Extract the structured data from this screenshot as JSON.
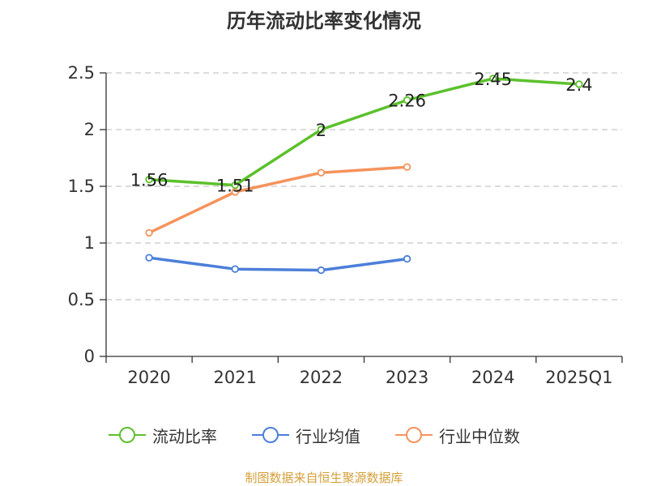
{
  "chart_data": {
    "type": "line",
    "title": "历年流动比率变化情况",
    "categories": [
      "2020",
      "2021",
      "2022",
      "2023",
      "2024",
      "2025Q1"
    ],
    "y_ticks": [
      "0",
      "0.5",
      "1",
      "1.5",
      "2",
      "2.5"
    ],
    "ylim": [
      0,
      2.5
    ],
    "xlabel": "",
    "ylabel": "",
    "grid": true,
    "legend_position": "bottom",
    "series": [
      {
        "name": "流动比率",
        "color": "#5cc12c",
        "values": [
          1.56,
          1.51,
          2.0,
          2.26,
          2.45,
          2.4
        ],
        "labels": [
          "1.56",
          "1.51",
          "2",
          "2.26",
          "2.45",
          "2.4"
        ]
      },
      {
        "name": "行业均值",
        "color": "#4c7fd9",
        "values": [
          0.87,
          0.77,
          0.76,
          0.86,
          null,
          null
        ]
      },
      {
        "name": "行业中位数",
        "color": "#f5935d",
        "values": [
          1.09,
          1.45,
          1.62,
          1.67,
          null,
          null
        ]
      }
    ]
  },
  "source": "制图数据来自恒生聚源数据库"
}
